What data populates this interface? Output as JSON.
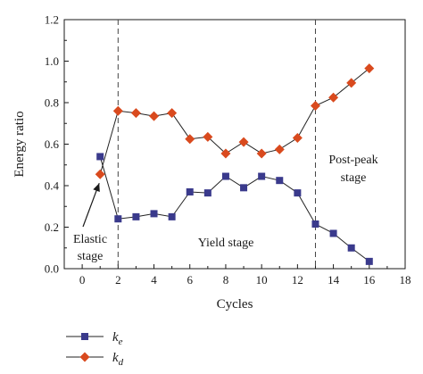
{
  "chart_data": {
    "type": "line",
    "xlabel": "Cycles",
    "ylabel": "Energy ratio",
    "xlim": [
      -1,
      18
    ],
    "ylim": [
      0.0,
      1.2
    ],
    "x_ticks": [
      "0",
      "2",
      "4",
      "6",
      "8",
      "10",
      "12",
      "14",
      "16",
      "18"
    ],
    "y_ticks": [
      "0.0",
      "0.2",
      "0.4",
      "0.6",
      "0.8",
      "1.0",
      "1.2"
    ],
    "grid": false,
    "legend_position": "bottom-left",
    "series": [
      {
        "name_main": "k",
        "name_sub": "e",
        "color": "#3a3a8c",
        "marker": "square",
        "x": [
          1,
          2,
          3,
          4,
          5,
          6,
          7,
          8,
          9,
          10,
          11,
          12,
          13,
          14,
          15,
          16
        ],
        "y": [
          0.54,
          0.24,
          0.25,
          0.265,
          0.25,
          0.37,
          0.365,
          0.445,
          0.39,
          0.445,
          0.425,
          0.365,
          0.215,
          0.17,
          0.1,
          0.035
        ]
      },
      {
        "name_main": "k",
        "name_sub": "d",
        "color": "#d94a1e",
        "marker": "diamond",
        "x": [
          1,
          2,
          3,
          4,
          5,
          6,
          7,
          8,
          9,
          10,
          11,
          12,
          13,
          14,
          15,
          16
        ],
        "y": [
          0.455,
          0.76,
          0.75,
          0.735,
          0.75,
          0.625,
          0.635,
          0.555,
          0.61,
          0.555,
          0.575,
          0.63,
          0.785,
          0.825,
          0.895,
          0.965
        ]
      }
    ],
    "stage_boundaries": [
      2,
      13
    ],
    "annotations": {
      "elastic_line1": "Elastic",
      "elastic_line2": "stage",
      "yield": "Yield stage",
      "postpeak_line1": "Post-peak",
      "postpeak_line2": "stage"
    },
    "elastic_arrow_target": [
      1,
      0.455
    ]
  }
}
